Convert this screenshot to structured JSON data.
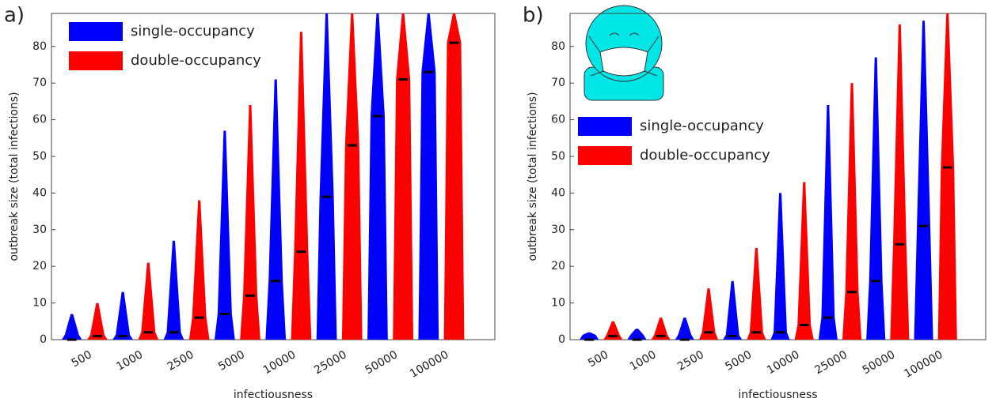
{
  "chart_data": [
    {
      "type": "violin",
      "panel_label": "a)",
      "x_label": "infectiousness",
      "y_label": "outbreak size (total infections)",
      "categories": [
        "500",
        "1000",
        "2500",
        "5000",
        "10000",
        "25000",
        "50000",
        "100000"
      ],
      "series": [
        {
          "name": "single-occupancy",
          "color": "#0000ff",
          "medians": [
            0,
            1,
            2,
            7,
            16,
            39,
            61,
            73
          ],
          "maxima": [
            7,
            13,
            27,
            57,
            71,
            89,
            89,
            89
          ]
        },
        {
          "name": "double-occupancy",
          "color": "#ff0000",
          "medians": [
            1,
            2,
            6,
            12,
            24,
            53,
            71,
            81
          ],
          "maxima": [
            10,
            21,
            38,
            64,
            84,
            89,
            89,
            89
          ]
        }
      ],
      "ylim": [
        0,
        89
      ],
      "yticks": [
        0,
        10,
        20,
        30,
        40,
        50,
        60,
        70,
        80
      ],
      "legend": "upper left"
    },
    {
      "type": "violin",
      "panel_label": "b)",
      "x_label": "infectiousness",
      "y_label": "outbreak size (total infections)",
      "categories": [
        "500",
        "1000",
        "2500",
        "5000",
        "10000",
        "25000",
        "50000",
        "100000"
      ],
      "series": [
        {
          "name": "single-occupancy",
          "color": "#0000ff",
          "medians": [
            0,
            0,
            0,
            1,
            2,
            6,
            16,
            31
          ],
          "maxima": [
            2,
            3,
            6,
            16,
            40,
            64,
            77,
            87
          ]
        },
        {
          "name": "double-occupancy",
          "color": "#ff0000",
          "medians": [
            1,
            1,
            2,
            2,
            4,
            13,
            26,
            47
          ],
          "maxima": [
            5,
            6,
            14,
            25,
            43,
            70,
            86,
            89
          ]
        }
      ],
      "ylim": [
        0,
        89
      ],
      "yticks": [
        0,
        10,
        20,
        30,
        40,
        50,
        60,
        70,
        80
      ],
      "legend": "center left"
    }
  ]
}
